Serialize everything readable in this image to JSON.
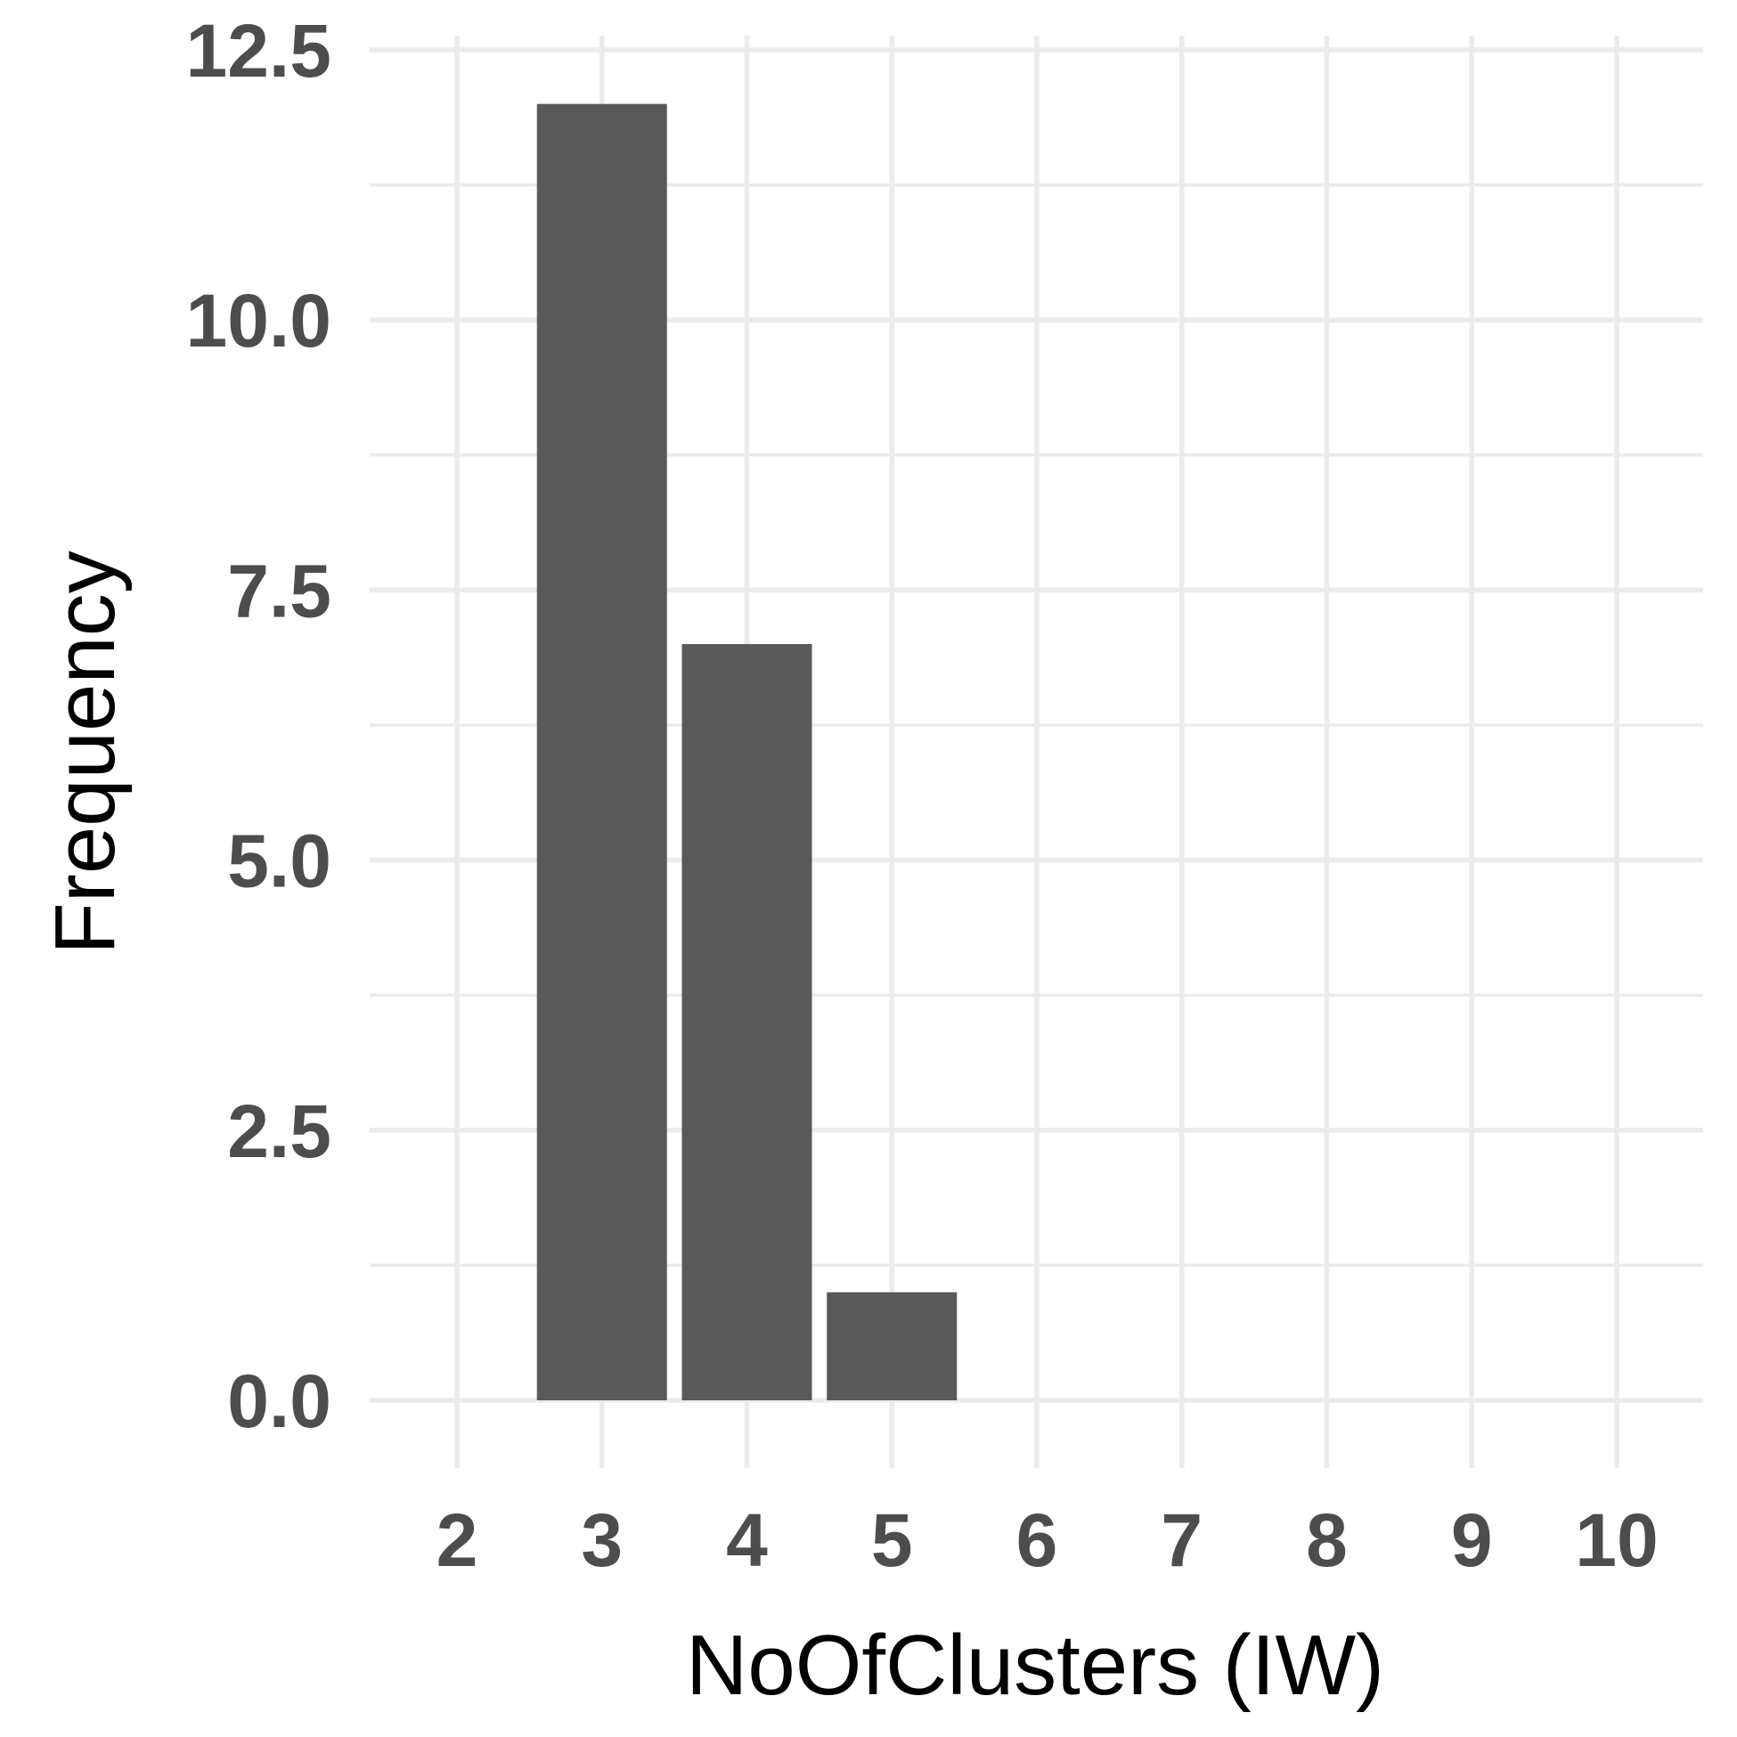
{
  "chart_data": {
    "type": "bar",
    "categories": [
      "2",
      "3",
      "4",
      "5",
      "6",
      "7",
      "8",
      "9",
      "10"
    ],
    "values": [
      0,
      12,
      7,
      1,
      0,
      0,
      0,
      0,
      0
    ],
    "xlabel": "NoOfClusters (IW)",
    "ylabel": "Frequency",
    "ylim": [
      -0.6,
      12.5
    ],
    "yticks": [
      "0.0",
      "2.5",
      "5.0",
      "7.5",
      "10.0",
      "12.5"
    ],
    "grid": true,
    "bar_color": "#595959",
    "grid_color": "#ebebeb",
    "tick_label_color": "#4d4d4d",
    "legend": "none"
  }
}
